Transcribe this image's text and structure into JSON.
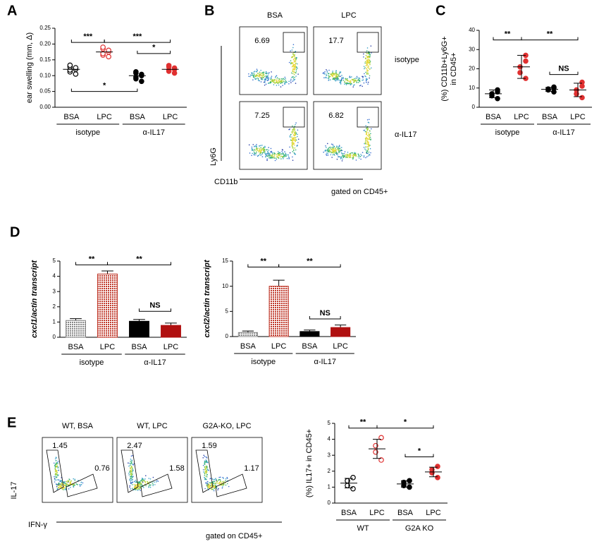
{
  "panel_labels": [
    "A",
    "B",
    "C",
    "D",
    "E"
  ],
  "chart_data": [
    {
      "type": "dot",
      "ylabel": [
        "ear swelling (mm, Δ)"
      ],
      "categories": [
        "BSA",
        "LPC",
        "BSA",
        "LPC"
      ],
      "groups": [
        {
          "label": "isotype",
          "from": 0,
          "to": 1
        },
        {
          "label": "α-IL17",
          "from": 2,
          "to": 3
        }
      ],
      "colors": [
        "#000000",
        "#e03030",
        "#000000",
        "#e03030"
      ],
      "filled": [
        false,
        false,
        true,
        true
      ],
      "points": [
        [
          0.105,
          0.112,
          0.118,
          0.12,
          0.125,
          0.128,
          0.133
        ],
        [
          0.16,
          0.165,
          0.17,
          0.175,
          0.18,
          0.185,
          0.19
        ],
        [
          0.082,
          0.09,
          0.095,
          0.1,
          0.104,
          0.108,
          0.112
        ],
        [
          0.108,
          0.114,
          0.118,
          0.12,
          0.124,
          0.128,
          0.132
        ]
      ],
      "means": [
        0.12,
        0.175,
        0.1,
        0.12
      ],
      "ylim": [
        0,
        0.25
      ],
      "yticks": [
        {
          "value": 0,
          "label": "0.00"
        },
        {
          "value": 0.05,
          "label": "0.05"
        },
        {
          "value": 0.1,
          "label": "0.10"
        },
        {
          "value": 0.15,
          "label": "0.15"
        },
        {
          "value": 0.2,
          "label": "0.20"
        },
        {
          "value": 0.25,
          "label": "0.25"
        }
      ],
      "brackets": [
        {
          "label": "***",
          "from": 0,
          "to": 1,
          "y": 0.205
        },
        {
          "label": "***",
          "from": 1,
          "to": 3,
          "y": 0.205
        },
        {
          "label": "*",
          "from": 2,
          "to": 3,
          "y": 0.17
        },
        {
          "label": "*",
          "from": 0,
          "to": 2,
          "y": 0.05
        }
      ]
    },
    {
      "type": "dot",
      "ylabel": [
        "(%) CD11b+Ly6G+",
        "in CD45+"
      ],
      "categories": [
        "BSA",
        "LPC",
        "BSA",
        "LPC"
      ],
      "groups": [
        {
          "label": "isotype",
          "from": 0,
          "to": 1
        },
        {
          "label": "α-IL17",
          "from": 2,
          "to": 3
        }
      ],
      "colors": [
        "#000000",
        "#e03030",
        "#000000",
        "#e03030"
      ],
      "filled": [
        true,
        true,
        true,
        true
      ],
      "points": [
        [
          4.5,
          6,
          7,
          8,
          9
        ],
        [
          15,
          18,
          21,
          24,
          27
        ],
        [
          8,
          9,
          9.5,
          10,
          10.5
        ],
        [
          5,
          7,
          9,
          11,
          13
        ]
      ],
      "means": [
        7,
        21,
        9.3,
        9
      ],
      "sds": [
        2,
        6,
        1,
        3.5
      ],
      "ylim": [
        0,
        40
      ],
      "yticks": [
        0,
        10,
        20,
        30,
        40
      ],
      "brackets": [
        {
          "label": "**",
          "from": 0,
          "to": 1,
          "y": 35
        },
        {
          "label": "**",
          "from": 1,
          "to": 3,
          "y": 35
        },
        {
          "label": "NS",
          "from": 2,
          "to": 3,
          "y": 17
        }
      ]
    },
    {
      "type": "bar",
      "ylabel": [
        "cxcl1/actin transcript"
      ],
      "categories": [
        "BSA",
        "LPC",
        "BSA",
        "LPC"
      ],
      "groups": [
        {
          "label": "isotype",
          "from": 0,
          "to": 1
        },
        {
          "label": "α-IL17",
          "from": 2,
          "to": 3
        }
      ],
      "colors": [
        "#888888",
        "#c0392b",
        "#000000",
        "#b01010"
      ],
      "hatched": [
        true,
        true,
        false,
        false
      ],
      "values": [
        1.1,
        4.15,
        1.05,
        0.78
      ],
      "errors": [
        0.12,
        0.2,
        0.12,
        0.15
      ],
      "ylim": [
        0,
        5
      ],
      "yticks": [
        0,
        1,
        2,
        3,
        4,
        5
      ],
      "brackets": [
        {
          "label": "**",
          "from": 0,
          "to": 1,
          "y": 4.75
        },
        {
          "label": "**",
          "from": 1,
          "to": 3,
          "y": 4.75
        },
        {
          "label": "NS",
          "from": 2,
          "to": 3,
          "y": 1.7
        }
      ]
    },
    {
      "type": "bar",
      "ylabel": [
        "cxcl2/actin transcript"
      ],
      "categories": [
        "BSA",
        "LPC",
        "BSA",
        "LPC"
      ],
      "groups": [
        {
          "label": "isotype",
          "from": 0,
          "to": 1
        },
        {
          "label": "α-IL17",
          "from": 2,
          "to": 3
        }
      ],
      "colors": [
        "#888888",
        "#c0392b",
        "#000000",
        "#b01010"
      ],
      "hatched": [
        true,
        true,
        false,
        false
      ],
      "values": [
        0.8,
        10,
        1.0,
        1.8
      ],
      "errors": [
        0.3,
        1.2,
        0.3,
        0.5
      ],
      "ylim": [
        0,
        15
      ],
      "yticks": [
        0,
        5,
        10,
        15
      ],
      "brackets": [
        {
          "label": "**",
          "from": 0,
          "to": 1,
          "y": 13.8
        },
        {
          "label": "**",
          "from": 1,
          "to": 3,
          "y": 13.8
        },
        {
          "label": "NS",
          "from": 2,
          "to": 3,
          "y": 3.5
        }
      ]
    },
    {
      "type": "dot",
      "ylabel": [
        "(%) IL17+ in CD45+"
      ],
      "categories": [
        "BSA",
        "LPC",
        "BSA",
        "LPC"
      ],
      "groups": [
        {
          "label": "WT",
          "from": 0,
          "to": 1
        },
        {
          "label": "G2A KO",
          "from": 2,
          "to": 3
        }
      ],
      "colors": [
        "#000000",
        "#e03030",
        "#000000",
        "#e03030"
      ],
      "filled": [
        false,
        false,
        true,
        true
      ],
      "points": [
        [
          0.9,
          1.1,
          1.4,
          1.6
        ],
        [
          2.7,
          3.2,
          3.6,
          4.1
        ],
        [
          1.0,
          1.1,
          1.3,
          1.4
        ],
        [
          1.6,
          1.9,
          2.1,
          2.3
        ]
      ],
      "means": [
        1.25,
        3.4,
        1.2,
        1.95
      ],
      "sds": [
        0.3,
        0.6,
        0.2,
        0.3
      ],
      "ylim": [
        0,
        5
      ],
      "yticks": [
        0,
        1,
        2,
        3,
        4,
        5
      ],
      "brackets": [
        {
          "label": "**",
          "from": 0,
          "to": 1,
          "y": 4.7
        },
        {
          "label": "*",
          "from": 1,
          "to": 3,
          "y": 4.7
        },
        {
          "label": "*",
          "from": 2,
          "to": 3,
          "y": 2.9
        }
      ]
    }
  ],
  "flow_B": {
    "columns": [
      "BSA",
      "LPC"
    ],
    "rows": [
      "isotype",
      "α-IL17"
    ],
    "gates": [
      6.69,
      17.7,
      7.25,
      6.82
    ],
    "y_label": "Ly6G",
    "x_label": "CD11b",
    "note": "gated on CD45+"
  },
  "flow_E": {
    "columns": [
      "WT, BSA",
      "WT, LPC",
      "G2A-KO, LPC"
    ],
    "il17_gates": [
      1.45,
      2.47,
      1.59
    ],
    "ifn_gates": [
      0.76,
      1.58,
      1.17
    ],
    "y_label": "IL-17",
    "x_label": "IFN-γ",
    "note": "gated on CD45+"
  }
}
